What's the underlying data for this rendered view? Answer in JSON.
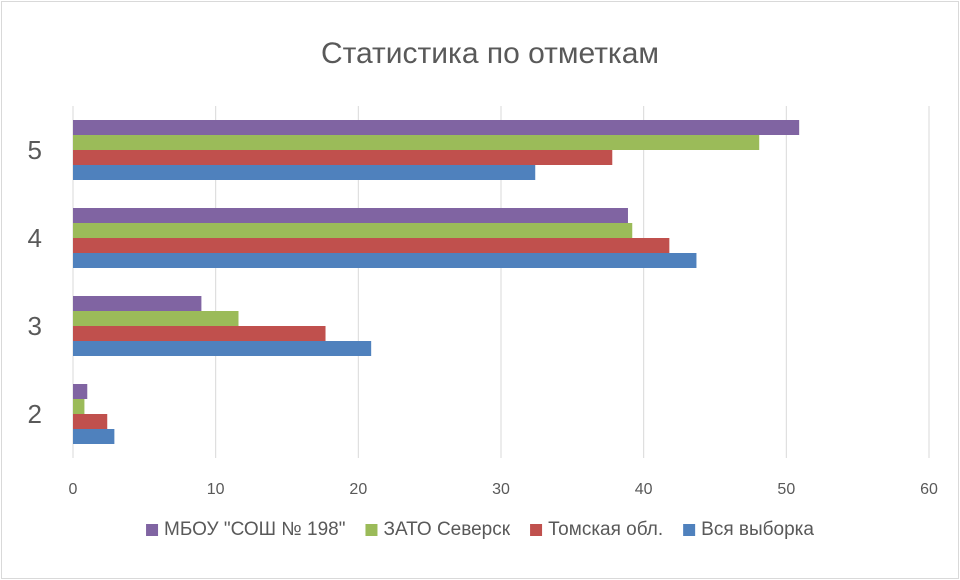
{
  "chart_data": {
    "type": "hbar",
    "title": "Статистика по отметкам",
    "categories": [
      "5",
      "4",
      "3",
      "2"
    ],
    "series": [
      {
        "name": "МБОУ \"СОШ № 198\"",
        "color": "#8064a2",
        "values": [
          50.9,
          38.9,
          9.0,
          1.0
        ]
      },
      {
        "name": "ЗАТО Северск",
        "color": "#9bbb59",
        "values": [
          48.1,
          39.2,
          11.6,
          0.8
        ]
      },
      {
        "name": "Томская обл.",
        "color": "#c0504d",
        "values": [
          37.8,
          41.8,
          17.7,
          2.4
        ]
      },
      {
        "name": "Вся выборка",
        "color": "#4f81bd",
        "values": [
          32.4,
          43.7,
          20.9,
          2.9
        ]
      }
    ],
    "xlim": [
      0,
      60
    ],
    "xticks": [
      0,
      10,
      20,
      30,
      40,
      50,
      60
    ],
    "grid": true,
    "legend": "bottom"
  }
}
